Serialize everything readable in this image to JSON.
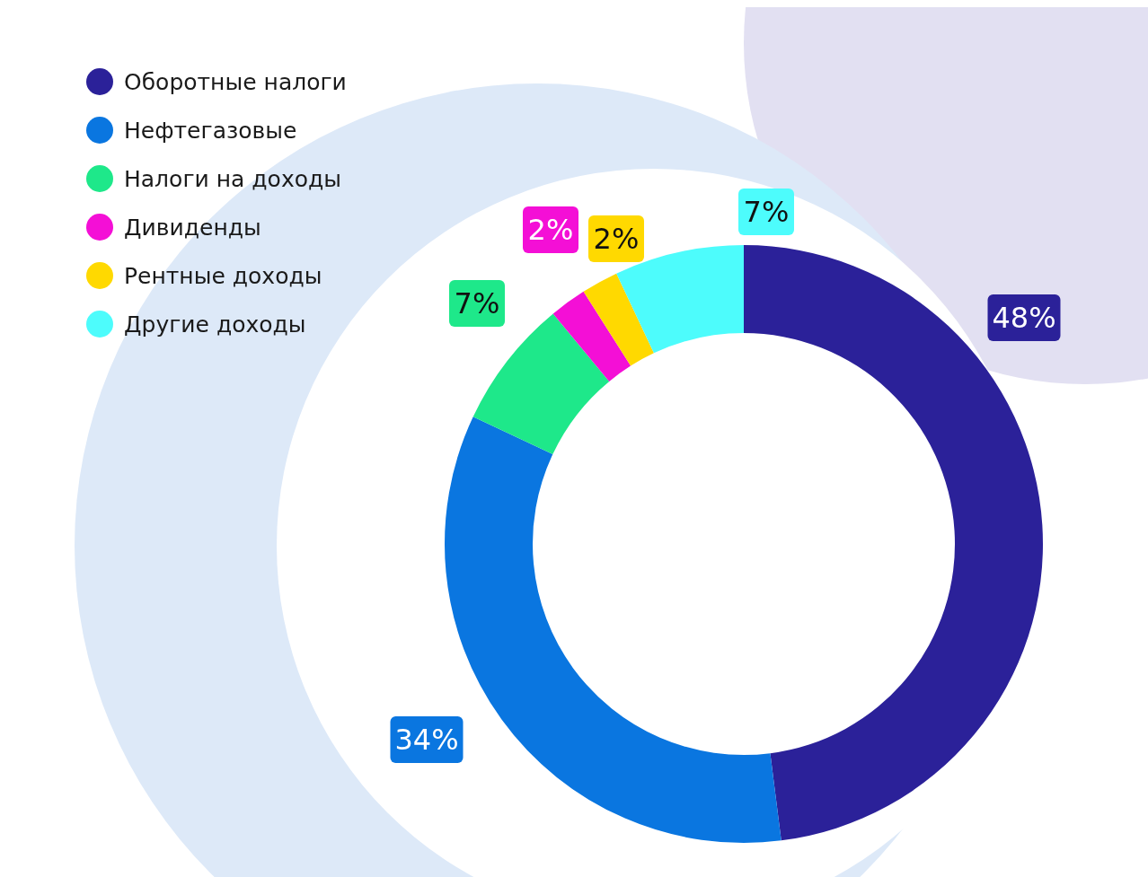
{
  "chart_data": {
    "type": "donut",
    "categories": [
      "Оборотные налоги",
      "Нефтегазовые",
      "Налоги на доходы",
      "Дивиденды",
      "Рентные доходы",
      "Другие доходы"
    ],
    "values": [
      48,
      34,
      7,
      2,
      2,
      7
    ],
    "colors": [
      "#2b2199",
      "#0a76e0",
      "#1ee88a",
      "#f40fd6",
      "#ffd900",
      "#4dfcfc"
    ],
    "value_labels": [
      "48%",
      "34%",
      "7%",
      "2%",
      "2%",
      "7%"
    ],
    "legend": "top left"
  }
}
